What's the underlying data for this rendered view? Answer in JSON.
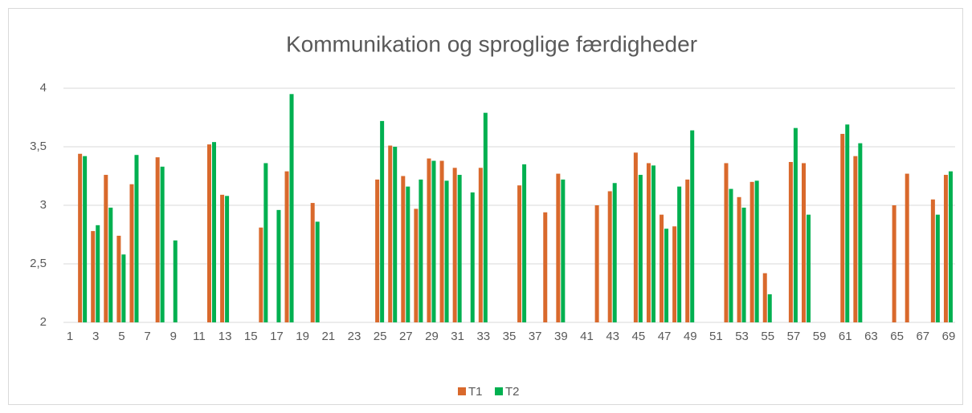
{
  "chart_data": {
    "type": "bar",
    "title": "Kommunikation og sproglige færdigheder",
    "categories": [
      "1",
      null,
      "3",
      null,
      "5",
      null,
      "7",
      null,
      "9",
      null,
      "11",
      null,
      "13",
      null,
      "15",
      null,
      "17",
      null,
      "19",
      null,
      "21",
      null,
      "23",
      null,
      "25",
      null,
      "27",
      null,
      "29",
      null,
      "31",
      null,
      "33",
      null,
      "35",
      null,
      "37",
      null,
      "39",
      null,
      "41",
      null,
      "43",
      null,
      "45",
      null,
      "47",
      null,
      "49",
      null,
      "51",
      null,
      "53",
      null,
      "55",
      null,
      "57",
      null,
      "59",
      null,
      "61",
      null,
      "63",
      null,
      "65",
      null,
      "67",
      null,
      "69"
    ],
    "series": [
      {
        "name": "T1",
        "color": "#d9692c",
        "values": [
          null,
          3.44,
          2.78,
          3.26,
          2.74,
          3.18,
          null,
          3.41,
          null,
          null,
          null,
          3.52,
          3.09,
          null,
          null,
          2.81,
          null,
          3.29,
          null,
          3.02,
          null,
          null,
          null,
          null,
          3.22,
          3.51,
          3.25,
          2.97,
          3.4,
          3.38,
          3.32,
          null,
          3.32,
          null,
          null,
          3.17,
          null,
          2.94,
          3.27,
          null,
          null,
          3.0,
          3.12,
          null,
          3.45,
          3.36,
          2.92,
          2.82,
          3.22,
          null,
          null,
          3.36,
          3.07,
          3.2,
          2.42,
          null,
          3.37,
          3.36,
          null,
          null,
          3.61,
          3.42,
          null,
          null,
          3.0,
          3.27,
          null,
          3.05,
          3.26
        ]
      },
      {
        "name": "T2",
        "color": "#00b050",
        "values": [
          null,
          3.42,
          2.83,
          2.98,
          2.58,
          3.43,
          null,
          3.33,
          2.7,
          null,
          null,
          3.54,
          3.08,
          null,
          null,
          3.36,
          2.96,
          3.95,
          null,
          2.86,
          null,
          null,
          null,
          null,
          3.72,
          3.5,
          3.16,
          3.22,
          3.38,
          3.21,
          3.26,
          3.11,
          3.79,
          null,
          null,
          3.35,
          null,
          null,
          3.22,
          null,
          null,
          null,
          3.19,
          null,
          3.26,
          3.34,
          2.8,
          3.16,
          3.64,
          null,
          null,
          3.14,
          2.98,
          3.21,
          2.24,
          null,
          3.66,
          2.92,
          null,
          null,
          3.69,
          3.53,
          null,
          null,
          null,
          null,
          null,
          2.92,
          3.29
        ]
      }
    ],
    "ylim": [
      2,
      4
    ],
    "yticks": [
      2,
      {
        "value": 2.5,
        "label": "2,5"
      },
      3,
      {
        "value": 3.5,
        "label": "3,5"
      },
      4
    ],
    "grid": true
  }
}
